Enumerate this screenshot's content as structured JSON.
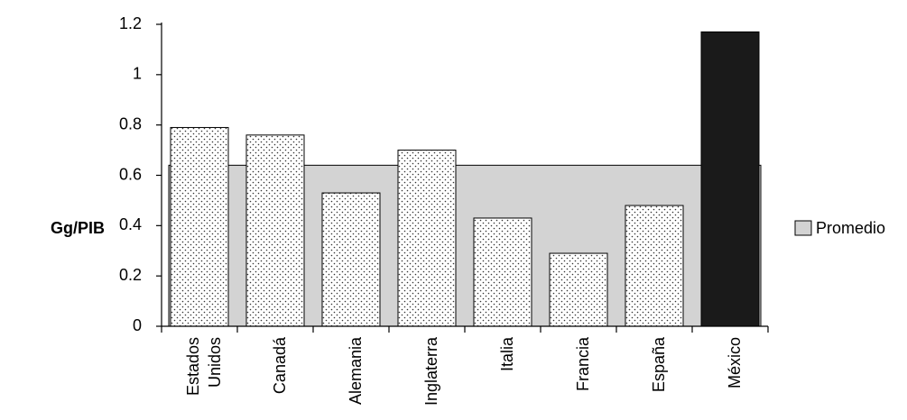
{
  "chart_data": {
    "type": "bar",
    "title": "",
    "ylabel": "Gg/PIB",
    "xlabel": "",
    "ylim": [
      0,
      1.2
    ],
    "yticks": [
      "0",
      "0.2",
      "0.4",
      "0.6",
      "0.8",
      "1",
      "1.2"
    ],
    "categories": [
      [
        "Estados",
        "Unidos"
      ],
      [
        "Canadá"
      ],
      [
        "Alemania"
      ],
      [
        "Inglaterra"
      ],
      [
        "Italia"
      ],
      [
        "Francia"
      ],
      [
        "España"
      ],
      [
        "México"
      ]
    ],
    "values": [
      0.79,
      0.76,
      0.53,
      0.7,
      0.43,
      0.29,
      0.48,
      1.17
    ],
    "highlight_index": 7,
    "highlight_color": "#1a1a1a",
    "bar_color": "#ffffff",
    "average": {
      "name": "Promedio",
      "value": 0.64,
      "color": "#d3d3d3"
    },
    "legend_position": "right"
  }
}
